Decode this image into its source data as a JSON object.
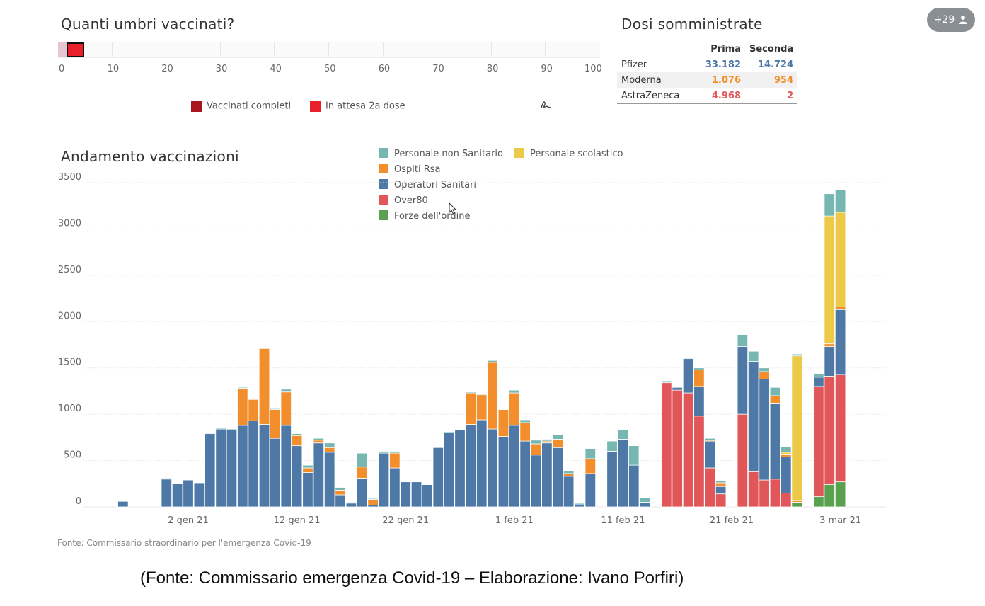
{
  "badge": {
    "count": "+29",
    "icon": "person-icon"
  },
  "vaccinated": {
    "title": "Quanti umbri vaccinati?",
    "ticks": [
      "0",
      "10",
      "20",
      "30",
      "40",
      "50",
      "60",
      "70",
      "80",
      "90",
      "100"
    ],
    "completed_pct": 0,
    "waiting_pct": 3.2,
    "legend": {
      "completed": "Vaccinati completi",
      "waiting": "In attesa 2a dose"
    },
    "colors": {
      "completed": "#a8151f",
      "waiting": "#e8202a"
    }
  },
  "doses": {
    "title": "Dosi somministrate",
    "headers": [
      "Prima",
      "Seconda"
    ],
    "rows": [
      {
        "name": "Pfizer",
        "first": "33.182",
        "second": "14.724",
        "color": "#4e79a7"
      },
      {
        "name": "Moderna",
        "first": "1.076",
        "second": "954",
        "color": "#f28e2b"
      },
      {
        "name": "AstraZeneca",
        "first": "4.968",
        "second": "2",
        "color": "#e15759"
      }
    ]
  },
  "chart_title": "Andamento vaccinazioni",
  "legend": {
    "personale_non_sanitario": "Personale non Sanitario",
    "ospiti_rsa": "Ospiti Rsa",
    "operatori_sanitari": "Operatori Sanitari",
    "over80": "Over80",
    "forze_ordine": "Forze dell'ordine",
    "personale_scolastico": "Personale scolastico"
  },
  "source_note": "Fonte: Commissario straordinario per l'emergenza Covid-19",
  "caption": "(Fonte: Commissario emergenza Covid-19 – Elaborazione: Ivano Porfiri)",
  "chart_data": {
    "type": "bar",
    "stacked": true,
    "y_ticks": [
      0,
      500,
      1000,
      1500,
      2000,
      2500,
      3000,
      3500
    ],
    "ylim": [
      0,
      3500
    ],
    "x_ticks": [
      "2 gen 21",
      "12 gen 21",
      "22 gen 21",
      "1 feb 21",
      "11 feb 21",
      "21 feb 21",
      "3 mar 21"
    ],
    "grid": true,
    "legend_placement": "top-center",
    "series_keys": [
      "forze",
      "over80",
      "operatori",
      "rsa",
      "scolastico",
      "nonsan"
    ],
    "series_colors": {
      "operatori": "#4e79a7",
      "rsa": "#f28e2b",
      "nonsan": "#76b7b2",
      "over80": "#e15759",
      "forze": "#59a14f",
      "scolastico": "#edc948"
    },
    "bars": [
      {
        "date": "2020-12-27",
        "operatori": 60,
        "nonsan": 10
      },
      {
        "date": "2020-12-31",
        "operatori": 300,
        "nonsan": 10
      },
      {
        "date": "2021-01-01",
        "operatori": 255
      },
      {
        "date": "2021-01-02",
        "operatori": 290
      },
      {
        "date": "2021-01-03",
        "operatori": 260
      },
      {
        "date": "2021-01-04",
        "operatori": 790,
        "nonsan": 15
      },
      {
        "date": "2021-01-05",
        "operatori": 840,
        "nonsan": 10
      },
      {
        "date": "2021-01-06",
        "operatori": 830,
        "nonsan": 10
      },
      {
        "date": "2021-01-07",
        "operatori": 880,
        "rsa": 400,
        "nonsan": 10
      },
      {
        "date": "2021-01-08",
        "operatori": 930,
        "rsa": 230,
        "nonsan": 10
      },
      {
        "date": "2021-01-09",
        "operatori": 890,
        "rsa": 820,
        "nonsan": 10
      },
      {
        "date": "2021-01-10",
        "operatori": 740,
        "rsa": 310,
        "nonsan": 10
      },
      {
        "date": "2021-01-11",
        "operatori": 880,
        "rsa": 360,
        "nonsan": 30
      },
      {
        "date": "2021-01-12",
        "operatori": 660,
        "rsa": 110,
        "nonsan": 20
      },
      {
        "date": "2021-01-13",
        "operatori": 370,
        "rsa": 50,
        "nonsan": 30
      },
      {
        "date": "2021-01-14",
        "operatori": 690,
        "rsa": 30,
        "nonsan": 20
      },
      {
        "date": "2021-01-15",
        "operatori": 590,
        "rsa": 50,
        "nonsan": 50
      },
      {
        "date": "2021-01-16",
        "operatori": 130,
        "rsa": 50,
        "nonsan": 30
      },
      {
        "date": "2021-01-17",
        "operatori": 40,
        "nonsan": 10
      },
      {
        "date": "2021-01-18",
        "operatori": 310,
        "rsa": 120,
        "nonsan": 150
      },
      {
        "date": "2021-01-19",
        "operatori": 20,
        "rsa": 60,
        "nonsan": 10
      },
      {
        "date": "2021-01-20",
        "operatori": 580,
        "nonsan": 20
      },
      {
        "date": "2021-01-21",
        "operatori": 420,
        "rsa": 160,
        "nonsan": 20
      },
      {
        "date": "2021-01-22",
        "operatori": 270
      },
      {
        "date": "2021-01-23",
        "operatori": 270
      },
      {
        "date": "2021-01-24",
        "operatori": 240
      },
      {
        "date": "2021-01-25",
        "operatori": 640
      },
      {
        "date": "2021-01-26",
        "operatori": 800,
        "nonsan": 10
      },
      {
        "date": "2021-01-27",
        "operatori": 830
      },
      {
        "date": "2021-01-28",
        "operatori": 890,
        "rsa": 340,
        "nonsan": 10
      },
      {
        "date": "2021-01-29",
        "operatori": 940,
        "rsa": 270,
        "nonsan": 10
      },
      {
        "date": "2021-01-30",
        "operatori": 840,
        "rsa": 720,
        "nonsan": 20
      },
      {
        "date": "2021-01-31",
        "operatori": 760,
        "rsa": 290
      },
      {
        "date": "2021-02-01",
        "operatori": 880,
        "rsa": 350,
        "nonsan": 30
      },
      {
        "date": "2021-02-02",
        "operatori": 710,
        "rsa": 200,
        "nonsan": 30
      },
      {
        "date": "2021-02-03",
        "operatori": 560,
        "rsa": 120,
        "nonsan": 40
      },
      {
        "date": "2021-02-04",
        "operatori": 690,
        "rsa": 20,
        "nonsan": 20
      },
      {
        "date": "2021-02-05",
        "operatori": 640,
        "rsa": 90,
        "nonsan": 50
      },
      {
        "date": "2021-02-06",
        "operatori": 330,
        "rsa": 30,
        "nonsan": 30
      },
      {
        "date": "2021-02-07",
        "operatori": 30,
        "nonsan": 10
      },
      {
        "date": "2021-02-08",
        "operatori": 360,
        "rsa": 160,
        "nonsan": 110
      },
      {
        "date": "2021-02-10",
        "operatori": 600,
        "nonsan": 110
      },
      {
        "date": "2021-02-11",
        "operatori": 730,
        "nonsan": 100
      },
      {
        "date": "2021-02-12",
        "operatori": 450,
        "nonsan": 210
      },
      {
        "date": "2021-02-13",
        "operatori": 50,
        "nonsan": 50
      },
      {
        "date": "2021-02-15",
        "over80": 1340,
        "nonsan": 20
      },
      {
        "date": "2021-02-16",
        "over80": 1260,
        "operatori": 30,
        "nonsan": 10
      },
      {
        "date": "2021-02-17",
        "over80": 1230,
        "operatori": 370,
        "nonsan": 10
      },
      {
        "date": "2021-02-18",
        "over80": 980,
        "operatori": 320,
        "rsa": 180,
        "nonsan": 20
      },
      {
        "date": "2021-02-19",
        "over80": 420,
        "operatori": 290,
        "rsa": 10,
        "nonsan": 20
      },
      {
        "date": "2021-02-20",
        "over80": 140,
        "operatori": 80,
        "rsa": 40,
        "nonsan": 20
      },
      {
        "date": "2021-02-22",
        "over80": 1000,
        "operatori": 730,
        "nonsan": 130
      },
      {
        "date": "2021-02-23",
        "over80": 380,
        "operatori": 1190,
        "nonsan": 110
      },
      {
        "date": "2021-02-24",
        "over80": 290,
        "operatori": 1090,
        "rsa": 80,
        "nonsan": 40
      },
      {
        "date": "2021-02-25",
        "over80": 300,
        "operatori": 820,
        "rsa": 80,
        "nonsan": 90
      },
      {
        "date": "2021-02-26",
        "over80": 150,
        "operatori": 390,
        "rsa": 30,
        "scolastico": 20,
        "nonsan": 60
      },
      {
        "date": "2021-02-27",
        "scolastico": 1560,
        "forze": 50,
        "rsa": 20,
        "nonsan": 20
      },
      {
        "date": "2021-03-01",
        "forze": 110,
        "over80": 1190,
        "operatori": 100,
        "nonsan": 40
      },
      {
        "date": "2021-03-02",
        "scolastico": 1380,
        "forze": 240,
        "over80": 1170,
        "operatori": 320,
        "rsa": 30,
        "nonsan": 240
      },
      {
        "date": "2021-03-03",
        "scolastico": 1020,
        "forze": 270,
        "over80": 1160,
        "operatori": 700,
        "rsa": 30,
        "nonsan": 240
      }
    ]
  }
}
